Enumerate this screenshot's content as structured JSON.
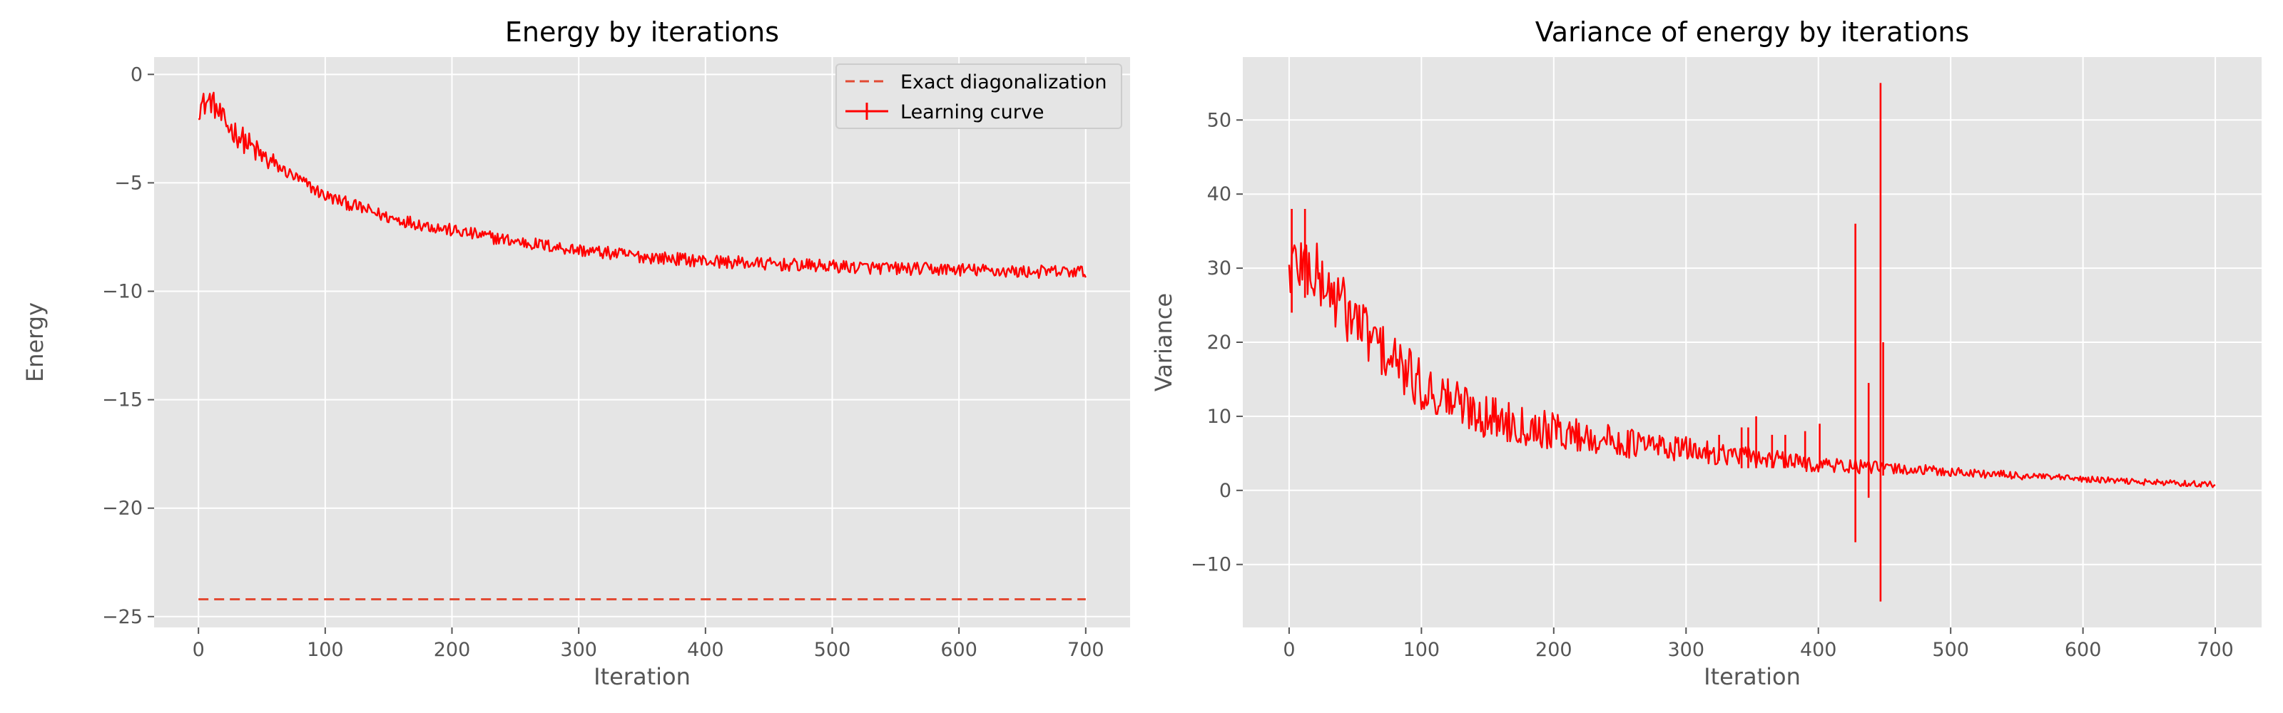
{
  "colors": {
    "background": "#E5E5E5",
    "grid": "#FFFFFF",
    "line": "#FF0000",
    "exact": "#E24A33"
  },
  "chart_data": [
    {
      "type": "line",
      "title": "Energy by iterations",
      "xlabel": "Iteration",
      "ylabel": "Energy",
      "xlim": [
        -35,
        735
      ],
      "ylim": [
        -25.5,
        0.8
      ],
      "xticks": [
        0,
        100,
        200,
        300,
        400,
        500,
        600,
        700
      ],
      "yticks": [
        0,
        -5,
        -10,
        -15,
        -20,
        -25
      ],
      "xtick_labels": [
        "0",
        "100",
        "200",
        "300",
        "400",
        "500",
        "600",
        "700"
      ],
      "ytick_labels": [
        "0",
        "−5",
        "−10",
        "−15",
        "−20",
        "−25"
      ],
      "grid": true,
      "legend": {
        "position": "top-right",
        "entries": [
          {
            "label": "Exact diagonalization",
            "style": "dashed"
          },
          {
            "label": "Learning curve",
            "style": "errorbar"
          }
        ]
      },
      "series": [
        {
          "name": "Exact diagonalization",
          "style": "dashed",
          "x": [
            0,
            700
          ],
          "y": [
            -24.2,
            -24.2
          ]
        },
        {
          "name": "Learning curve",
          "style": "noisy-line",
          "x": [
            0,
            10,
            20,
            50,
            100,
            150,
            200,
            250,
            300,
            350,
            400,
            450,
            500,
            550,
            600,
            650,
            700
          ],
          "y": [
            -1.5,
            -1.2,
            -2.2,
            -3.8,
            -5.6,
            -6.6,
            -7.2,
            -7.7,
            -8.1,
            -8.4,
            -8.6,
            -8.75,
            -8.85,
            -8.95,
            -9.0,
            -9.1,
            -9.1
          ],
          "noise": 0.3
        }
      ]
    },
    {
      "type": "line",
      "title": "Variance of energy by iterations",
      "xlabel": "Iteration",
      "ylabel": "Variance",
      "xlim": [
        -35,
        735
      ],
      "ylim": [
        -18.5,
        58.5
      ],
      "xticks": [
        0,
        100,
        200,
        300,
        400,
        500,
        600,
        700
      ],
      "yticks": [
        -10,
        0,
        10,
        20,
        30,
        40,
        50
      ],
      "xtick_labels": [
        "0",
        "100",
        "200",
        "300",
        "400",
        "500",
        "600",
        "700"
      ],
      "ytick_labels": [
        "−10",
        "0",
        "10",
        "20",
        "30",
        "40",
        "50"
      ],
      "grid": true,
      "series": [
        {
          "name": "Variance",
          "style": "noisy-line",
          "x": [
            0,
            10,
            20,
            30,
            50,
            75,
            100,
            150,
            200,
            250,
            300,
            350,
            400,
            450,
            500,
            550,
            600,
            650,
            700
          ],
          "y": [
            30,
            31,
            29,
            27,
            23,
            18,
            14,
            10,
            8,
            6.5,
            5.5,
            4.5,
            3.5,
            3,
            2.5,
            2,
            1.5,
            1.1,
            0.8
          ],
          "noise_start": 4.5,
          "noise_end": 0.4,
          "spikes": [
            {
              "x": 2,
              "low": 24,
              "high": 38
            },
            {
              "x": 12,
              "low": 26,
              "high": 38
            },
            {
              "x": 325,
              "low": 4,
              "high": 7.5
            },
            {
              "x": 342,
              "low": 3,
              "high": 8.5
            },
            {
              "x": 347,
              "low": 3,
              "high": 8.5
            },
            {
              "x": 353,
              "low": 3,
              "high": 10
            },
            {
              "x": 365,
              "low": 3,
              "high": 7.5
            },
            {
              "x": 375,
              "low": 3,
              "high": 7.5
            },
            {
              "x": 390,
              "low": 3,
              "high": 8
            },
            {
              "x": 401,
              "low": 3,
              "high": 9
            },
            {
              "x": 428,
              "low": -7,
              "high": 36
            },
            {
              "x": 438,
              "low": -1,
              "high": 14.5
            },
            {
              "x": 447,
              "low": -15,
              "high": 55
            },
            {
              "x": 449,
              "low": 2,
              "high": 20
            }
          ]
        }
      ]
    }
  ]
}
